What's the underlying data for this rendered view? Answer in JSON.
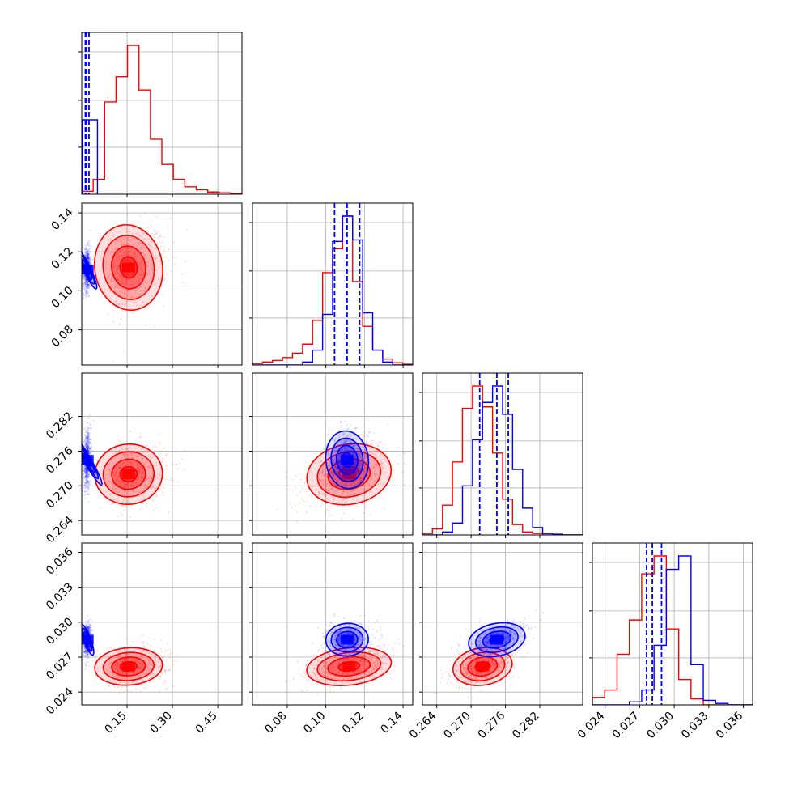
{
  "chart_data": {
    "type": "corner",
    "parameters": [
      {
        "label": "",
        "range": [
          0.0,
          0.53
        ],
        "ticks": [
          0.15,
          0.3,
          0.45
        ],
        "tick_labels": [
          "0.15",
          "0.30",
          "0.45"
        ]
      },
      {
        "label": "",
        "range": [
          0.062,
          0.145
        ],
        "ticks": [
          0.08,
          0.1,
          0.12,
          0.14
        ],
        "tick_labels": [
          "0.08",
          "0.10",
          "0.12",
          "0.14"
        ]
      },
      {
        "label": "",
        "range": [
          0.2615,
          0.2895
        ],
        "ticks": [
          0.264,
          0.27,
          0.276,
          0.282
        ],
        "tick_labels": [
          "0.264",
          "0.270",
          "0.276",
          "0.282"
        ]
      },
      {
        "label": "",
        "range": [
          0.0229,
          0.0368
        ],
        "ticks": [
          0.024,
          0.027,
          0.03,
          0.033,
          0.036
        ],
        "tick_labels": [
          "0.024",
          "0.027",
          "0.030",
          "0.033",
          "0.036"
        ]
      }
    ],
    "series": [
      {
        "color": "#ff0000",
        "means": [
          0.155,
          0.112,
          0.272,
          0.0262
        ],
        "sigmas": [
          0.04,
          0.011,
          0.0026,
          0.0008
        ],
        "hist_counts": [
          [
            0.02,
            0.1,
            0.62,
            0.79,
            1.0,
            0.7,
            0.37,
            0.2,
            0.1,
            0.05,
            0.03,
            0.015,
            0.01,
            0.006
          ],
          [
            0.01,
            0.02,
            0.03,
            0.05,
            0.08,
            0.14,
            0.3,
            0.62,
            0.78,
            1.0,
            0.56,
            0.26,
            0.1,
            0.04,
            0.015,
            0.005
          ],
          [
            0.01,
            0.04,
            0.2,
            0.49,
            0.85,
            1.0,
            0.86,
            0.55,
            0.24,
            0.07,
            0.02,
            0.01,
            0.0,
            0.0,
            0.0,
            0.0
          ],
          [
            0.05,
            0.1,
            0.34,
            0.57,
            0.88,
            1.0,
            0.51,
            0.17,
            0.04,
            0.0,
            0.0,
            0.0,
            0.0
          ]
        ]
      },
      {
        "color": "#0000ff",
        "means": [
          0.018,
          0.111,
          0.2745,
          0.0285
        ],
        "sigmas": [
          0.006,
          0.0055,
          0.0025,
          0.0007
        ],
        "hist_counts": [
          [
            0.5,
            0.5
          ],
          [
            0.0,
            0.0,
            0.0,
            0.0,
            0.0,
            0.02,
            0.1,
            0.34,
            0.83,
            1.0,
            0.84,
            0.35,
            0.1,
            0.02,
            0.0,
            0.0
          ],
          [
            0.0,
            0.0,
            0.02,
            0.08,
            0.33,
            0.64,
            0.89,
            1.0,
            0.81,
            0.44,
            0.18,
            0.05,
            0.01,
            0.005,
            0.0,
            0.0
          ],
          [
            0.0,
            0.0,
            0.0,
            0.02,
            0.1,
            0.4,
            0.91,
            1.0,
            0.27,
            0.03,
            0.01,
            0.0,
            0.0
          ]
        ],
        "quantiles": [
          [
            0.012,
            0.016,
            0.024
          ],
          [
            0.1045,
            0.111,
            0.1175
          ],
          [
            0.2715,
            0.2745,
            0.2765
          ],
          [
            0.0276,
            0.0281,
            0.0289
          ]
        ]
      }
    ],
    "grid": true,
    "legend": "none"
  }
}
